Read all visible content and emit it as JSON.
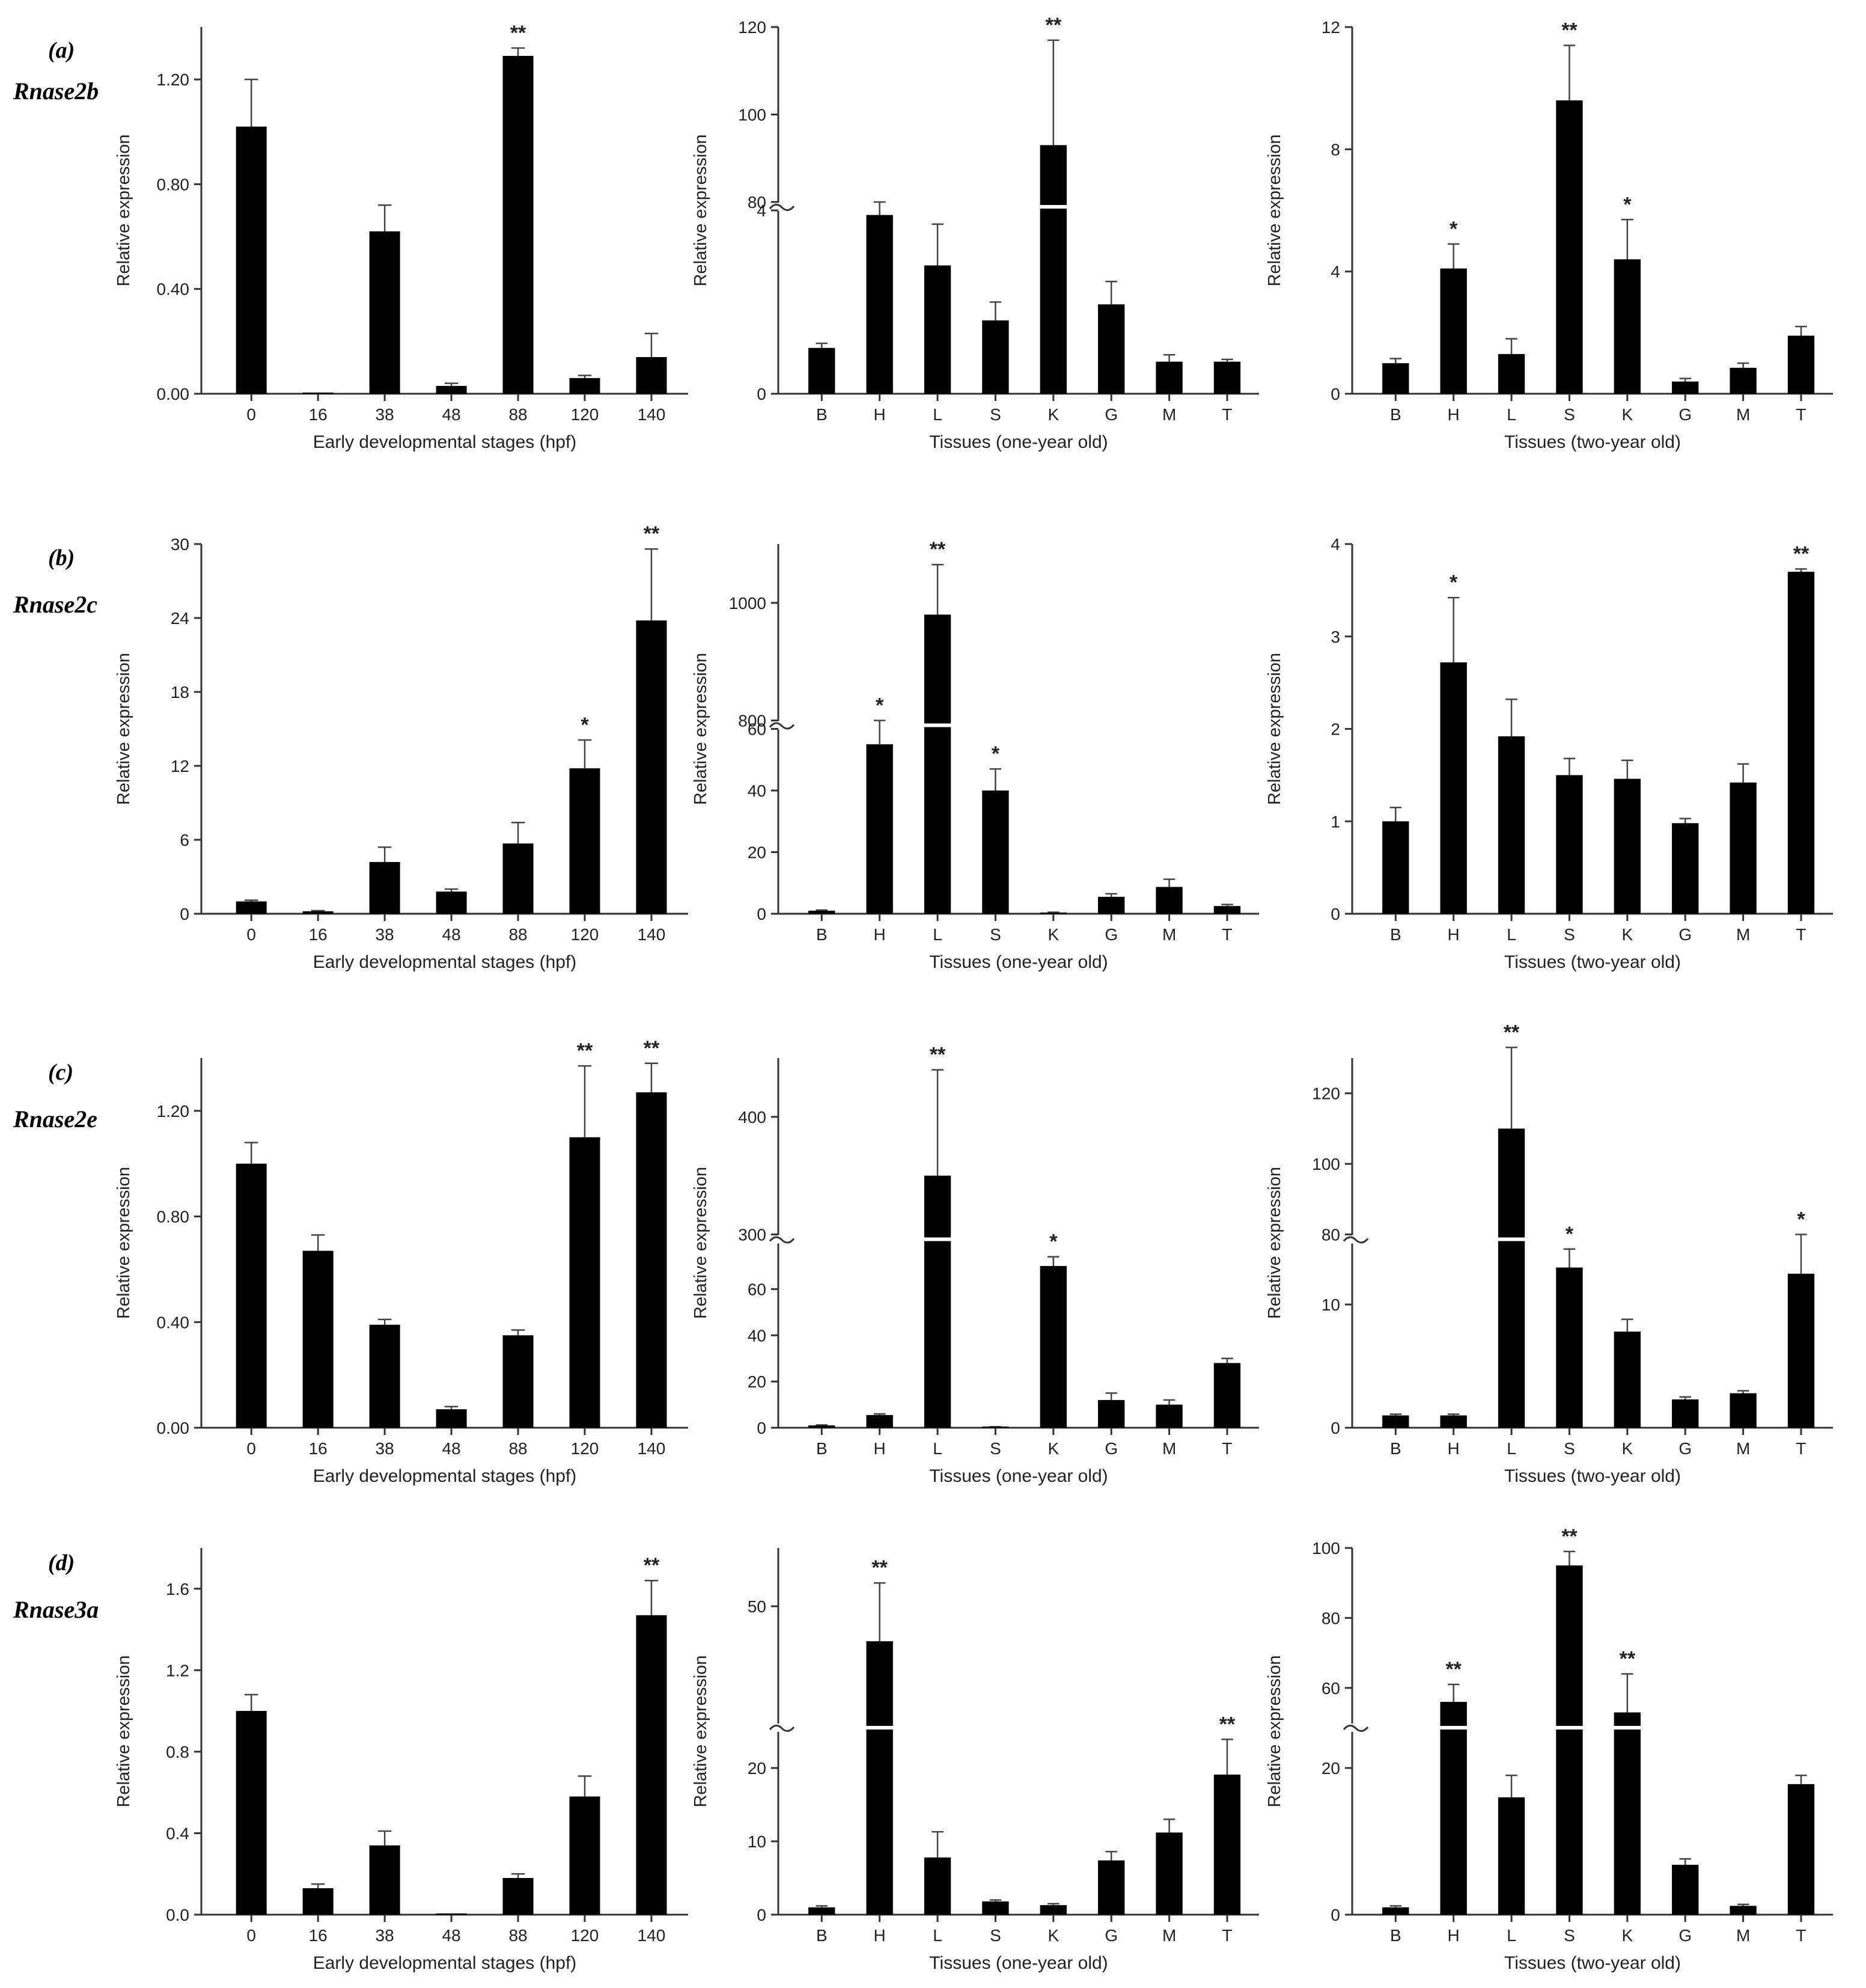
{
  "rows": [
    {
      "letter": "(a)",
      "gene": "Rnase2b"
    },
    {
      "letter": "(b)",
      "gene": "Rnase2c"
    },
    {
      "letter": "(c)",
      "gene": "Rnase2e"
    },
    {
      "letter": "(d)",
      "gene": "Rnase3a"
    }
  ],
  "chart_data": [
    {
      "type": "bar",
      "panel": "a-1",
      "categories": [
        "0",
        "16",
        "38",
        "48",
        "88",
        "120",
        "140"
      ],
      "values": [
        1.02,
        0.0,
        0.62,
        0.03,
        1.29,
        0.06,
        0.14
      ],
      "errors": [
        0.18,
        0,
        0.1,
        0.01,
        0.03,
        0.01,
        0.09
      ],
      "significance": [
        "",
        "",
        "",
        "",
        "**",
        "",
        ""
      ],
      "xlabel": "Early developmental stages (hpf)",
      "ylabel": "Relative expression",
      "yticks": [
        0.0,
        0.4,
        0.8,
        1.2
      ],
      "ylim": [
        0,
        1.4
      ]
    },
    {
      "type": "bar",
      "panel": "a-2",
      "categories": [
        "B",
        "H",
        "L",
        "S",
        "K",
        "G",
        "M",
        "T"
      ],
      "values": [
        1.0,
        3.9,
        2.8,
        1.6,
        93,
        1.95,
        0.7,
        0.7
      ],
      "errors": [
        0.1,
        0.4,
        0.9,
        0.4,
        24,
        0.5,
        0.15,
        0.05
      ],
      "significance": [
        "",
        "",
        "",
        "",
        "**",
        "",
        "",
        ""
      ],
      "xlabel": "Tissues (one-year old)",
      "ylabel": "Relative expression",
      "axis_break": {
        "lower": [
          0,
          4
        ],
        "upper": [
          80,
          120
        ]
      },
      "yticks": [
        0,
        4,
        80,
        100,
        120
      ],
      "ylim": [
        0,
        120
      ]
    },
    {
      "type": "bar",
      "panel": "a-3",
      "categories": [
        "B",
        "H",
        "L",
        "S",
        "K",
        "G",
        "M",
        "T"
      ],
      "values": [
        1.0,
        4.1,
        1.3,
        9.6,
        4.4,
        0.4,
        0.85,
        1.9
      ],
      "errors": [
        0.15,
        0.8,
        0.5,
        1.8,
        1.3,
        0.1,
        0.15,
        0.3
      ],
      "significance": [
        "",
        "*",
        "",
        "**",
        "*",
        "",
        "",
        ""
      ],
      "xlabel": "Tissues (two-year old)",
      "ylabel": "Relative expression",
      "yticks": [
        0,
        4,
        8,
        12
      ],
      "ylim": [
        0,
        12
      ]
    },
    {
      "type": "bar",
      "panel": "b-1",
      "categories": [
        "0",
        "16",
        "38",
        "48",
        "88",
        "120",
        "140"
      ],
      "values": [
        1.0,
        0.2,
        4.2,
        1.8,
        5.7,
        11.8,
        23.8
      ],
      "errors": [
        0.1,
        0.05,
        1.2,
        0.2,
        1.7,
        2.3,
        5.8
      ],
      "significance": [
        "",
        "",
        "",
        "",
        "",
        "*",
        "**"
      ],
      "xlabel": "Early developmental stages (hpf)",
      "ylabel": "Relative expression",
      "yticks": [
        0,
        6,
        12,
        18,
        24,
        30
      ],
      "ylim": [
        0,
        30
      ]
    },
    {
      "type": "bar",
      "panel": "b-2",
      "categories": [
        "B",
        "H",
        "L",
        "S",
        "K",
        "G",
        "M",
        "T"
      ],
      "values": [
        1.0,
        55,
        980,
        40,
        0.4,
        5.5,
        8.7,
        2.5
      ],
      "errors": [
        0.2,
        17,
        85,
        7,
        0.1,
        1.0,
        2.5,
        0.5
      ],
      "significance": [
        "",
        "*",
        "**",
        "*",
        "",
        "",
        "",
        ""
      ],
      "xlabel": "Tissues (one-year old)",
      "ylabel": "Relative expression",
      "axis_break": {
        "lower": [
          0,
          60
        ],
        "upper": [
          800,
          1100
        ]
      },
      "yticks": [
        0,
        20,
        40,
        60,
        800,
        1000
      ],
      "ylim": [
        0,
        1100
      ]
    },
    {
      "type": "bar",
      "panel": "b-3",
      "categories": [
        "B",
        "H",
        "L",
        "S",
        "K",
        "G",
        "M",
        "T"
      ],
      "values": [
        1.0,
        2.72,
        1.92,
        1.5,
        1.46,
        0.98,
        1.42,
        3.7
      ],
      "errors": [
        0.15,
        0.7,
        0.4,
        0.18,
        0.2,
        0.05,
        0.2,
        0.03
      ],
      "significance": [
        "",
        "*",
        "",
        "",
        "",
        "",
        "",
        "**"
      ],
      "xlabel": "Tissues (two-year old)",
      "ylabel": "Relative expression",
      "yticks": [
        0,
        1,
        2,
        3,
        4
      ],
      "ylim": [
        0,
        4
      ]
    },
    {
      "type": "bar",
      "panel": "c-1",
      "categories": [
        "0",
        "16",
        "38",
        "48",
        "88",
        "120",
        "140"
      ],
      "values": [
        1.0,
        0.67,
        0.39,
        0.07,
        0.35,
        1.1,
        1.27
      ],
      "errors": [
        0.08,
        0.06,
        0.02,
        0.01,
        0.02,
        0.27,
        0.11
      ],
      "significance": [
        "",
        "",
        "",
        "",
        "",
        "**",
        "**"
      ],
      "xlabel": "Early developmental stages (hpf)",
      "ylabel": "Relative expression",
      "yticks": [
        0.0,
        0.4,
        0.8,
        1.2
      ],
      "ylim": [
        0,
        1.4
      ]
    },
    {
      "type": "bar",
      "panel": "c-2",
      "categories": [
        "B",
        "H",
        "L",
        "S",
        "K",
        "G",
        "M",
        "T"
      ],
      "values": [
        1.0,
        5.5,
        350,
        0.3,
        70,
        12,
        10,
        28
      ],
      "errors": [
        0.2,
        0.5,
        90,
        0.1,
        4,
        3,
        2,
        2
      ],
      "significance": [
        "",
        "",
        "**",
        "",
        "*",
        "",
        "",
        ""
      ],
      "xlabel": "Tissues (one-year old)",
      "ylabel": "Relative expression",
      "axis_break": {
        "lower": [
          0,
          80
        ],
        "upper": [
          300,
          450
        ]
      },
      "yticks": [
        0,
        20,
        40,
        60,
        300,
        400
      ],
      "ylim": [
        0,
        450
      ]
    },
    {
      "type": "bar",
      "panel": "c-3",
      "categories": [
        "B",
        "H",
        "L",
        "S",
        "K",
        "G",
        "M",
        "T"
      ],
      "values": [
        1.0,
        1.0,
        110,
        13,
        7.8,
        2.3,
        2.8,
        12.5
      ],
      "errors": [
        0.1,
        0.1,
        23,
        1.5,
        1.0,
        0.2,
        0.2,
        3.5
      ],
      "significance": [
        "",
        "",
        "**",
        "*",
        "",
        "",
        "",
        "*"
      ],
      "xlabel": "Tissues (two-year old)",
      "ylabel": "Relative expression",
      "axis_break": {
        "lower": [
          0,
          15
        ],
        "upper": [
          80,
          130
        ]
      },
      "yticks": [
        0,
        10,
        80,
        100,
        120
      ],
      "ylim": [
        0,
        130
      ]
    },
    {
      "type": "bar",
      "panel": "d-1",
      "categories": [
        "0",
        "16",
        "38",
        "48",
        "88",
        "120",
        "140"
      ],
      "values": [
        1.0,
        0.13,
        0.34,
        0.0,
        0.18,
        0.58,
        1.47
      ],
      "errors": [
        0.08,
        0.02,
        0.07,
        0,
        0.02,
        0.1,
        0.17
      ],
      "significance": [
        "",
        "",
        "",
        "",
        "",
        "",
        "**"
      ],
      "xlabel": "Early developmental stages (hpf)",
      "ylabel": "Relative expression",
      "yticks": [
        0.0,
        0.4,
        0.8,
        1.2,
        1.6
      ],
      "ylim": [
        0,
        1.8
      ]
    },
    {
      "type": "bar",
      "panel": "d-2",
      "categories": [
        "B",
        "H",
        "L",
        "S",
        "K",
        "G",
        "M",
        "T"
      ],
      "values": [
        1.0,
        44,
        7.8,
        1.8,
        1.3,
        7.4,
        11.2,
        19.1
      ],
      "errors": [
        0.2,
        10,
        3.5,
        0.2,
        0.2,
        1.2,
        1.8,
        4.8
      ],
      "significance": [
        "",
        "**",
        "",
        "",
        "",
        "",
        "",
        "**"
      ],
      "xlabel": "Tissues (one-year old)",
      "ylabel": "Relative expression",
      "axis_break": {
        "lower": [
          0,
          25
        ],
        "upper": [
          30,
          60
        ]
      },
      "yticks": [
        0,
        10,
        20,
        50
      ],
      "ylim": [
        0,
        60
      ]
    },
    {
      "type": "bar",
      "panel": "d-3",
      "categories": [
        "B",
        "H",
        "L",
        "S",
        "K",
        "G",
        "M",
        "T"
      ],
      "values": [
        1.0,
        56,
        16,
        95,
        53,
        6.8,
        1.2,
        17.8
      ],
      "errors": [
        0.2,
        5,
        3,
        4,
        11,
        0.8,
        0.2,
        1.2
      ],
      "significance": [
        "",
        "**",
        "",
        "**",
        "**",
        "",
        "",
        ""
      ],
      "xlabel": "Tissues (two-year old)",
      "ylabel": "Relative expression",
      "axis_break": {
        "lower": [
          0,
          25
        ],
        "upper": [
          50,
          100
        ]
      },
      "yticks": [
        0,
        20,
        60,
        80,
        100
      ],
      "ylim": [
        0,
        100
      ]
    }
  ]
}
